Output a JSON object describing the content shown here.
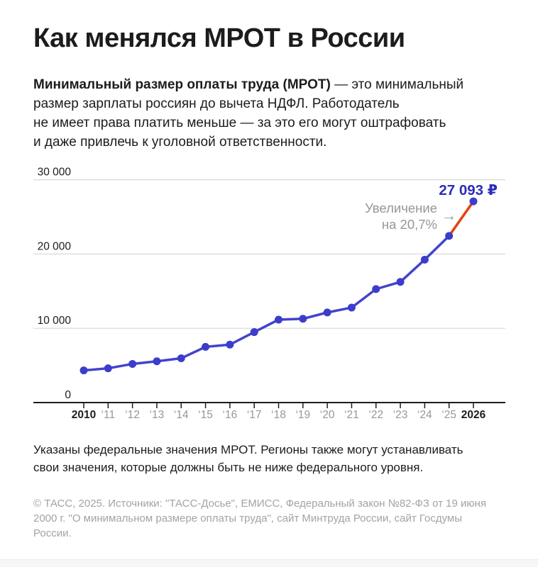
{
  "page": {
    "title": "Как менялся МРОТ в России",
    "intro": {
      "line1_bold": "Минимальный размер оплаты труда (МРОТ)",
      "line1_rest": " — это минимальный",
      "line2": "размер зарплаты россиян до вычета НДФЛ. Работодатель",
      "line3": "не имеет права платить меньше — за это его могут оштрафовать",
      "line4": "и даже привлечь к уголовной ответственности."
    },
    "note_line1": "Указаны федеральные значения МРОТ. Регионы также могут устанавливать",
    "note_line2": "свои значения, которые должны быть не ниже федерального уровня.",
    "source_line1": "© ТАСС, 2025. Источники: \"ТАСС-Досье\", ЕМИСС, Федеральный закон №82-ФЗ от 19 июня",
    "source_line2": "2000 г. \"О минимальном размере оплаты труда\", сайт Минтруда России, сайт Госдумы",
    "source_line3": "России."
  },
  "chart_data": {
    "type": "line",
    "title": "Как менялся МРОТ в России",
    "categories": [
      2010,
      2011,
      2012,
      2013,
      2014,
      2015,
      2016,
      2017,
      2018,
      2019,
      2020,
      2021,
      2022,
      2023,
      2024,
      2025,
      2026
    ],
    "x_tick_labels": [
      "2010",
      "‘11",
      "‘12",
      "‘13",
      "‘14",
      "‘15",
      "‘16",
      "‘17",
      "‘18",
      "‘19",
      "‘20",
      "‘21",
      "‘22",
      "‘23",
      "‘24",
      "‘25",
      "2026"
    ],
    "emphasized_tick_indexes": [
      0,
      16
    ],
    "values": [
      4330,
      4611,
      5205,
      5554,
      5965,
      7500,
      7800,
      9489,
      11163,
      11280,
      12130,
      12792,
      15279,
      16242,
      19242,
      22440,
      27093
    ],
    "unit": "₽",
    "ylim": [
      0,
      30000
    ],
    "yticks": [
      {
        "value": 0,
        "label": "0"
      },
      {
        "value": 10000,
        "label": "10 000"
      },
      {
        "value": 20000,
        "label": "20 000"
      },
      {
        "value": 30000,
        "label": "30 000"
      }
    ],
    "grid": "horizontal",
    "legend": null,
    "highlight_last_segment": true,
    "last_value_label": "27 093 ₽",
    "annotation": {
      "text_line1": "Увеличение",
      "text_line2": "на 20,7%",
      "arrow_glyph": "→",
      "increase_percent": "20,7%"
    },
    "colors": {
      "line": "#4343cd",
      "dot": "#3c3ccd",
      "highlight": "#e2430e",
      "value_label": "#2a2eb8",
      "grid": "#d9d9da",
      "axis": "#1c1c1e",
      "tick_label": "#1c1c1e",
      "tick_label_muted": "#97979c",
      "annotation": "#96969b"
    }
  }
}
